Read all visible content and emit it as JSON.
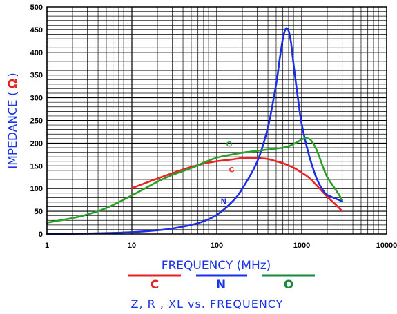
{
  "chart_data": {
    "type": "line",
    "title": "Z, R , XL vs. FREQUENCY",
    "xlabel": "FREQUENCY (MHz)",
    "ylabel": "IMPEDANCE (",
    "ylabel_unit": "Ω",
    "ylabel_close": ")",
    "x_scale": "log",
    "xlim": [
      1,
      10000
    ],
    "ylim": [
      0,
      500
    ],
    "grid": true,
    "x_ticks": [
      {
        "value": 1,
        "label": "1"
      },
      {
        "value": 10,
        "label": "10"
      },
      {
        "value": 100,
        "label": "100"
      },
      {
        "value": 1000,
        "label": "1000"
      },
      {
        "value": 10000,
        "label": "10000"
      }
    ],
    "y_ticks": [
      {
        "value": 0,
        "label": "0"
      },
      {
        "value": 50,
        "label": "50"
      },
      {
        "value": 100,
        "label": "100"
      },
      {
        "value": 150,
        "label": "150"
      },
      {
        "value": 200,
        "label": "200"
      },
      {
        "value": 250,
        "label": "250"
      },
      {
        "value": 300,
        "label": "300"
      },
      {
        "value": 350,
        "label": "350"
      },
      {
        "value": 400,
        "label": "400"
      },
      {
        "value": 450,
        "label": "450"
      },
      {
        "value": 500,
        "label": "500"
      }
    ],
    "legend": [
      {
        "label": "C",
        "color": "#e62222"
      },
      {
        "label": "N",
        "color": "#1a33e6"
      },
      {
        "label": "O",
        "color": "#1a8a3a"
      }
    ],
    "series": [
      {
        "name": "C",
        "color": "#ee2222",
        "label_at": {
          "x": 150,
          "y": 142
        },
        "points": [
          [
            10,
            101
          ],
          [
            20,
            122
          ],
          [
            40,
            142
          ],
          [
            70,
            155
          ],
          [
            100,
            160
          ],
          [
            150,
            164
          ],
          [
            200,
            167
          ],
          [
            300,
            167
          ],
          [
            400,
            165
          ],
          [
            500,
            160
          ],
          [
            600,
            156
          ],
          [
            800,
            146
          ],
          [
            1000,
            135
          ],
          [
            1200,
            125
          ],
          [
            1500,
            107
          ],
          [
            2000,
            82
          ],
          [
            2500,
            65
          ],
          [
            3000,
            50
          ]
        ]
      },
      {
        "name": "N",
        "color": "#1a2ee6",
        "label_at": {
          "x": 120,
          "y": 73
        },
        "points": [
          [
            1,
            0
          ],
          [
            3,
            1
          ],
          [
            5,
            2
          ],
          [
            10,
            4
          ],
          [
            20,
            8
          ],
          [
            30,
            12
          ],
          [
            50,
            20
          ],
          [
            70,
            28
          ],
          [
            100,
            42
          ],
          [
            150,
            70
          ],
          [
            200,
            100
          ],
          [
            300,
            160
          ],
          [
            400,
            235
          ],
          [
            500,
            330
          ],
          [
            550,
            385
          ],
          [
            600,
            430
          ],
          [
            650,
            452
          ],
          [
            700,
            447
          ],
          [
            750,
            420
          ],
          [
            800,
            375
          ],
          [
            900,
            300
          ],
          [
            1000,
            242
          ],
          [
            1200,
            178
          ],
          [
            1500,
            122
          ],
          [
            1800,
            95
          ],
          [
            2000,
            86
          ],
          [
            2500,
            78
          ],
          [
            3000,
            72
          ]
        ]
      },
      {
        "name": "O",
        "color": "#2aa02a",
        "label_at": {
          "x": 140,
          "y": 198
        },
        "points": [
          [
            1,
            25
          ],
          [
            2,
            35
          ],
          [
            3,
            43
          ],
          [
            5,
            57
          ],
          [
            10,
            85
          ],
          [
            20,
            115
          ],
          [
            30,
            130
          ],
          [
            50,
            145
          ],
          [
            70,
            157
          ],
          [
            100,
            168
          ],
          [
            150,
            175
          ],
          [
            200,
            179
          ],
          [
            300,
            183
          ],
          [
            400,
            186
          ],
          [
            500,
            188
          ],
          [
            600,
            190
          ],
          [
            700,
            193
          ],
          [
            800,
            198
          ],
          [
            900,
            203
          ],
          [
            1000,
            208
          ],
          [
            1100,
            211
          ],
          [
            1200,
            210
          ],
          [
            1300,
            205
          ],
          [
            1500,
            185
          ],
          [
            1800,
            145
          ],
          [
            2000,
            125
          ],
          [
            2500,
            98
          ],
          [
            3000,
            75
          ]
        ]
      }
    ]
  }
}
